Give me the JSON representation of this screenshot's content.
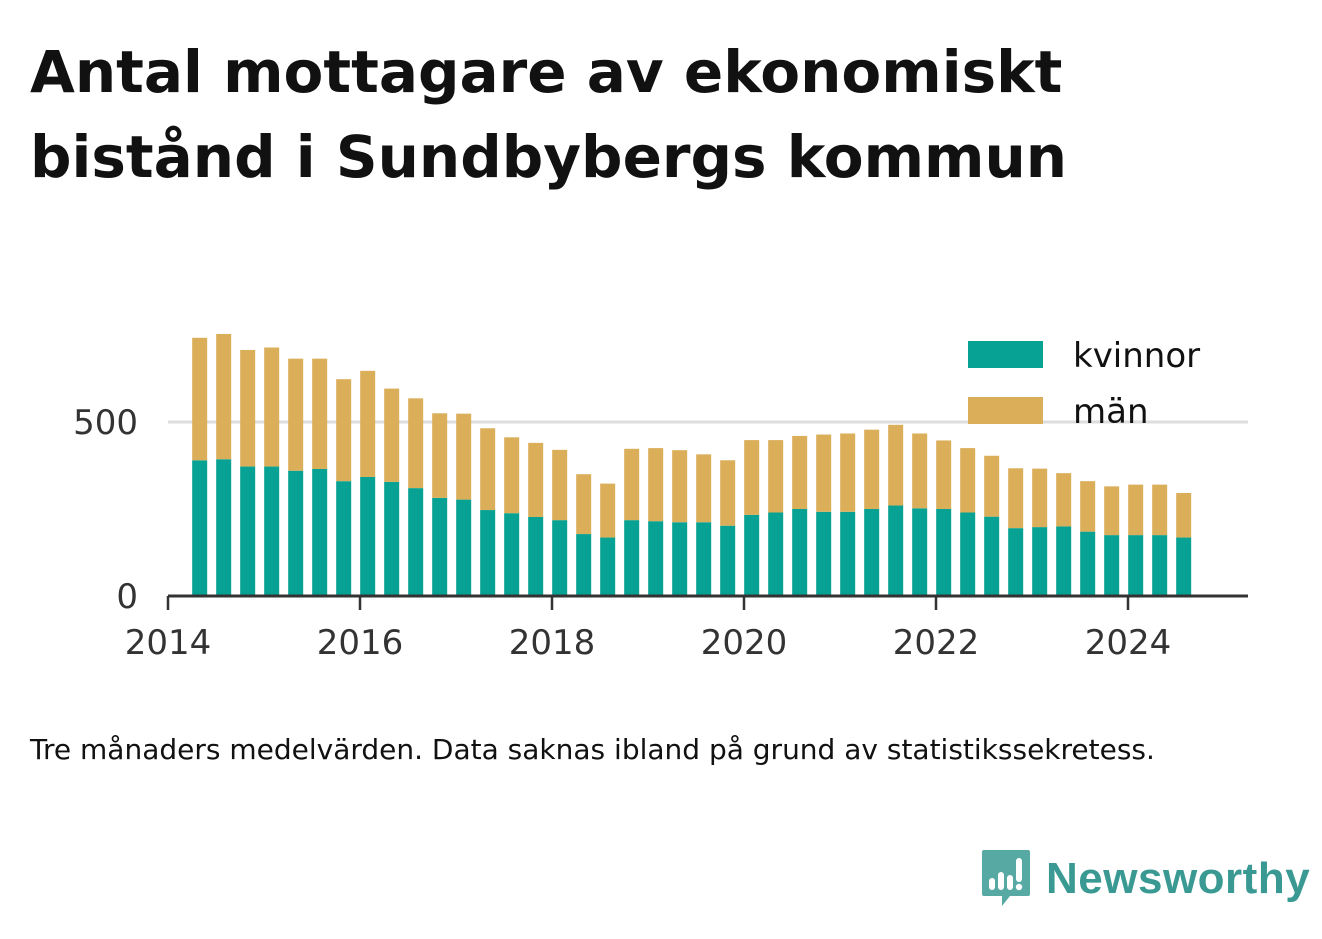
{
  "title_lines": [
    "Antal mottagare av ekonomiskt",
    "bistånd i Sundbybergs kommun"
  ],
  "caption": "Tre månaders medelvärden. Data saknas ibland på grund av statistikssekretess.",
  "brand": {
    "name": "Newsworthy",
    "color": "#3a9a93",
    "icon": "newsworthy-bar-chart-icon"
  },
  "chart_data": {
    "type": "bar",
    "stacked": true,
    "xlim": [
      2014,
      2025.25
    ],
    "ylim": [
      0,
      1000
    ],
    "x_ticks": [
      2014,
      2016,
      2018,
      2020,
      2022,
      2024
    ],
    "y_ticks": [
      0,
      500
    ],
    "grid": "horizontal",
    "legend_position": "top-right",
    "x": [
      2014.33,
      2014.58,
      2014.83,
      2015.08,
      2015.33,
      2015.58,
      2015.83,
      2016.08,
      2016.33,
      2016.58,
      2016.83,
      2017.08,
      2017.33,
      2017.58,
      2017.83,
      2018.08,
      2018.33,
      2018.58,
      2018.83,
      2019.08,
      2019.33,
      2019.58,
      2019.83,
      2020.08,
      2020.33,
      2020.58,
      2020.83,
      2021.08,
      2021.33,
      2021.58,
      2021.83,
      2022.08,
      2022.33,
      2022.58,
      2022.83,
      2023.08,
      2023.33,
      2023.58,
      2023.83,
      2024.08,
      2024.33,
      2024.58
    ],
    "series": [
      {
        "name": "kvinnor",
        "color": "#07a293",
        "values": [
          390,
          393,
          372,
          372,
          360,
          365,
          330,
          342,
          328,
          310,
          282,
          277,
          247,
          238,
          227,
          218,
          178,
          168,
          218,
          215,
          212,
          212,
          202,
          233,
          240,
          250,
          242,
          242,
          250,
          260,
          252,
          250,
          240,
          228,
          195,
          198,
          200,
          185,
          175,
          175,
          175,
          168
        ]
      },
      {
        "name": "män",
        "color": "#dbae5a",
        "values": [
          352,
          360,
          335,
          342,
          322,
          317,
          293,
          305,
          268,
          258,
          243,
          247,
          235,
          218,
          213,
          202,
          172,
          155,
          205,
          210,
          207,
          195,
          188,
          215,
          208,
          210,
          222,
          225,
          228,
          232,
          215,
          197,
          185,
          175,
          172,
          168,
          153,
          145,
          140,
          145,
          145,
          128
        ]
      }
    ]
  }
}
